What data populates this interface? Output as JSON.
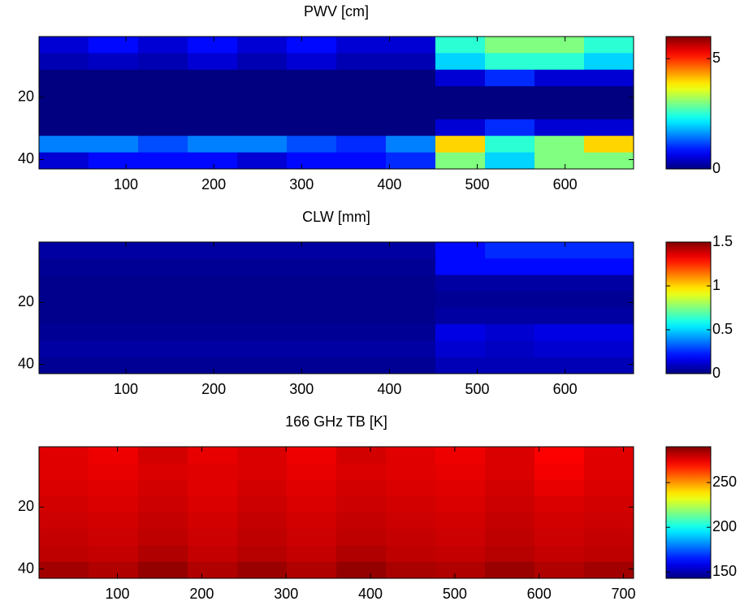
{
  "chart_data": [
    {
      "type": "heatmap",
      "title": "PWV [cm]",
      "xlim": [
        1,
        678
      ],
      "ylim": [
        0.5,
        43
      ],
      "reverse_y": true,
      "xticks": [
        100,
        200,
        300,
        400,
        500,
        600
      ],
      "yticks": [
        20,
        40
      ],
      "clim": [
        0,
        6
      ],
      "cticks": [
        0,
        5
      ],
      "colormap": "jet",
      "z": [
        [
          0.5,
          0.8,
          0.5,
          0.8,
          0.5,
          0.8,
          0.5,
          0.5,
          2.5,
          3,
          3,
          2.5
        ],
        [
          0.3,
          0.4,
          0.3,
          0.5,
          0.3,
          0.5,
          0.3,
          0.3,
          2,
          2.5,
          2.5,
          2
        ],
        [
          0,
          0,
          0,
          0,
          0,
          0,
          0,
          0,
          0.5,
          1,
          0.5,
          0.5
        ],
        [
          0,
          0,
          0,
          0,
          0,
          0,
          0,
          0,
          0,
          0,
          0,
          0
        ],
        [
          0,
          0,
          0,
          0,
          0,
          0,
          0,
          0,
          0,
          0,
          0,
          0
        ],
        [
          0,
          0,
          0,
          0,
          0,
          0,
          0,
          0,
          0.5,
          1,
          0.5,
          0.5
        ],
        [
          1.5,
          1.5,
          1.2,
          1.5,
          1.5,
          1.2,
          1,
          1.5,
          4,
          2.5,
          3,
          4
        ],
        [
          0.5,
          0.8,
          0.8,
          0.8,
          0.5,
          0.8,
          0.8,
          1,
          3,
          2,
          3,
          3
        ]
      ]
    },
    {
      "type": "heatmap",
      "title": "CLW [mm]",
      "xlim": [
        1,
        678
      ],
      "ylim": [
        0.5,
        43
      ],
      "reverse_y": true,
      "xticks": [
        100,
        200,
        300,
        400,
        500,
        600
      ],
      "yticks": [
        20,
        40
      ],
      "clim": [
        0,
        1.5
      ],
      "cticks": [
        0,
        0.5,
        1,
        1.5
      ],
      "colormap": "jet",
      "z": [
        [
          0.05,
          0.05,
          0.05,
          0.05,
          0.05,
          0.05,
          0.05,
          0.05,
          0.2,
          0.25,
          0.25,
          0.25
        ],
        [
          0.03,
          0.03,
          0.03,
          0.03,
          0.03,
          0.03,
          0.03,
          0.03,
          0.2,
          0.2,
          0.2,
          0.2
        ],
        [
          0.02,
          0.02,
          0.02,
          0.02,
          0.02,
          0.02,
          0.02,
          0.02,
          0.05,
          0.05,
          0.05,
          0.05
        ],
        [
          0.02,
          0.02,
          0.02,
          0.02,
          0.02,
          0.02,
          0.02,
          0.02,
          0.03,
          0.03,
          0.03,
          0.03
        ],
        [
          0.02,
          0.02,
          0.02,
          0.02,
          0.02,
          0.02,
          0.02,
          0.02,
          0.05,
          0.05,
          0.05,
          0.05
        ],
        [
          0.03,
          0.03,
          0.03,
          0.03,
          0.03,
          0.03,
          0.03,
          0.03,
          0.15,
          0.12,
          0.15,
          0.15
        ],
        [
          0.05,
          0.05,
          0.05,
          0.05,
          0.05,
          0.05,
          0.05,
          0.05,
          0.12,
          0.1,
          0.12,
          0.12
        ],
        [
          0.03,
          0.03,
          0.03,
          0.03,
          0.03,
          0.03,
          0.03,
          0.03,
          0.08,
          0.08,
          0.08,
          0.08
        ]
      ]
    },
    {
      "type": "heatmap",
      "title": "166 GHz TB [K]",
      "xlim": [
        7,
        712
      ],
      "ylim": [
        0.5,
        43
      ],
      "reverse_y": true,
      "xticks": [
        100,
        200,
        300,
        400,
        500,
        600,
        700
      ],
      "yticks": [
        20,
        40
      ],
      "clim": [
        143,
        290
      ],
      "cticks": [
        150,
        200,
        250
      ],
      "colormap": "jet",
      "z": [
        [
          276,
          274,
          278,
          275,
          277,
          274,
          278,
          276,
          274,
          277,
          272,
          276
        ],
        [
          276,
          275,
          277,
          276,
          277,
          275,
          277,
          276,
          275,
          277,
          273,
          276
        ],
        [
          277,
          276,
          278,
          276,
          278,
          276,
          278,
          277,
          276,
          278,
          275,
          277
        ],
        [
          278,
          277,
          279,
          277,
          279,
          277,
          279,
          278,
          277,
          279,
          277,
          278
        ],
        [
          279,
          278,
          280,
          278,
          280,
          278,
          280,
          279,
          278,
          280,
          278,
          279
        ],
        [
          280,
          279,
          281,
          279,
          281,
          279,
          281,
          280,
          279,
          281,
          279,
          280
        ],
        [
          281,
          280,
          283,
          280,
          282,
          280,
          283,
          281,
          280,
          282,
          280,
          281
        ],
        [
          285,
          283,
          287,
          283,
          286,
          283,
          287,
          284,
          283,
          286,
          283,
          285
        ]
      ]
    }
  ]
}
